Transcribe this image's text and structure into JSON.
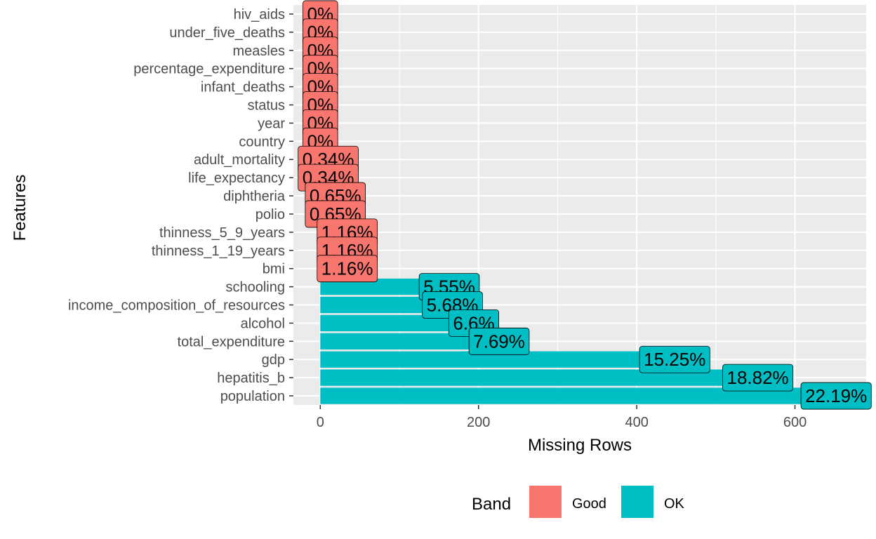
{
  "chart_data": {
    "type": "bar",
    "orientation": "horizontal",
    "xlabel": "Missing Rows",
    "ylabel": "Features",
    "xlim": [
      -34,
      690
    ],
    "x_ticks": [
      0,
      200,
      400,
      600
    ],
    "grid": true,
    "legend": {
      "title": "Band",
      "position": "bottom",
      "entries": [
        {
          "label": "Good",
          "color": "#F8766D"
        },
        {
          "label": "OK",
          "color": "#00BFC4"
        }
      ]
    },
    "bars": [
      {
        "feature": "hiv_aids",
        "missing_rows": 0,
        "label": "0%",
        "band": "Good"
      },
      {
        "feature": "under_five_deaths",
        "missing_rows": 0,
        "label": "0%",
        "band": "Good"
      },
      {
        "feature": "measles",
        "missing_rows": 0,
        "label": "0%",
        "band": "Good"
      },
      {
        "feature": "percentage_expenditure",
        "missing_rows": 0,
        "label": "0%",
        "band": "Good"
      },
      {
        "feature": "infant_deaths",
        "missing_rows": 0,
        "label": "0%",
        "band": "Good"
      },
      {
        "feature": "status",
        "missing_rows": 0,
        "label": "0%",
        "band": "Good"
      },
      {
        "feature": "year",
        "missing_rows": 0,
        "label": "0%",
        "band": "Good"
      },
      {
        "feature": "country",
        "missing_rows": 0,
        "label": "0%",
        "band": "Good"
      },
      {
        "feature": "adult_mortality",
        "missing_rows": 10,
        "label": "0.34%",
        "band": "Good"
      },
      {
        "feature": "life_expectancy",
        "missing_rows": 10,
        "label": "0.34%",
        "band": "Good"
      },
      {
        "feature": "diphtheria",
        "missing_rows": 19,
        "label": "0.65%",
        "band": "Good"
      },
      {
        "feature": "polio",
        "missing_rows": 19,
        "label": "0.65%",
        "band": "Good"
      },
      {
        "feature": "thinness_5_9_years",
        "missing_rows": 34,
        "label": "1.16%",
        "band": "Good"
      },
      {
        "feature": "thinness_1_19_years",
        "missing_rows": 34,
        "label": "1.16%",
        "band": "Good"
      },
      {
        "feature": "bmi",
        "missing_rows": 34,
        "label": "1.16%",
        "band": "Good"
      },
      {
        "feature": "schooling",
        "missing_rows": 163,
        "label": "5.55%",
        "band": "OK"
      },
      {
        "feature": "income_composition_of_resources",
        "missing_rows": 167,
        "label": "5.68%",
        "band": "OK"
      },
      {
        "feature": "alcohol",
        "missing_rows": 194,
        "label": "6.6%",
        "band": "OK"
      },
      {
        "feature": "total_expenditure",
        "missing_rows": 226,
        "label": "7.69%",
        "band": "OK"
      },
      {
        "feature": "gdp",
        "missing_rows": 448,
        "label": "15.25%",
        "band": "OK"
      },
      {
        "feature": "hepatitis_b",
        "missing_rows": 553,
        "label": "18.82%",
        "band": "OK"
      },
      {
        "feature": "population",
        "missing_rows": 652,
        "label": "22.19%",
        "band": "OK"
      }
    ]
  }
}
